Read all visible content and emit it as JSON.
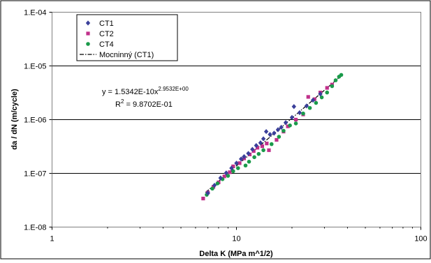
{
  "chart_data": {
    "type": "scatter",
    "xscale": "log",
    "yscale": "log",
    "xlim": [
      1,
      100
    ],
    "ylim": [
      1e-08,
      0.0001
    ],
    "xticks": [
      1,
      10,
      100
    ],
    "xtick_labels": [
      "1",
      "10",
      "100"
    ],
    "yticks": [
      1e-08,
      1e-07,
      1e-06,
      1e-05,
      0.0001
    ],
    "ytick_labels": [
      "1.E-08",
      "1.E-07",
      "1.E-06",
      "1.E-05",
      "1.E-04"
    ],
    "xlabel": "Delta K (MPa m^1/2)",
    "ylabel": "da / dN  (m/cycle)",
    "grid": "horizontal major",
    "legend_position": "top-left",
    "series": [
      {
        "name": "CT1",
        "marker": "diamond",
        "color": "#3a3f9a",
        "points": [
          [
            7.0,
            4.3e-08
          ],
          [
            7.6,
            6e-08
          ],
          [
            8.2,
            8.2e-08
          ],
          [
            8.8,
            1.02e-07
          ],
          [
            9.4,
            1.25e-07
          ],
          [
            10.0,
            1.55e-07
          ],
          [
            10.6,
            1.85e-07
          ],
          [
            11.0,
            2.05e-07
          ],
          [
            11.6,
            2.35e-07
          ],
          [
            12.2,
            2.8e-07
          ],
          [
            12.8,
            3.3e-07
          ],
          [
            13.5,
            3.7e-07
          ],
          [
            14.0,
            4.4e-07
          ],
          [
            14.5,
            6e-07
          ],
          [
            15.2,
            5.3e-07
          ],
          [
            16.0,
            5.6e-07
          ],
          [
            16.8,
            6.5e-07
          ],
          [
            17.5,
            7.2e-07
          ],
          [
            18.5,
            8.8e-07
          ],
          [
            20.0,
            1.1e-06
          ],
          [
            20.5,
            1.75e-06
          ],
          [
            22.0,
            1.35e-06
          ],
          [
            24.0,
            1.8e-06
          ],
          [
            26.0,
            2.3e-06
          ],
          [
            28.5,
            3e-06
          ]
        ]
      },
      {
        "name": "CT2",
        "marker": "square",
        "color": "#c0308a",
        "points": [
          [
            6.6,
            3.4e-08
          ],
          [
            7.0,
            4.4e-08
          ],
          [
            7.5,
            5.6e-08
          ],
          [
            8.0,
            6.8e-08
          ],
          [
            8.6,
            8.8e-08
          ],
          [
            9.2,
            1.05e-07
          ],
          [
            9.6,
            1.35e-07
          ],
          [
            10.4,
            1.55e-07
          ],
          [
            11.0,
            1.9e-07
          ],
          [
            11.8,
            2.25e-07
          ],
          [
            12.4,
            2.6e-07
          ],
          [
            13.0,
            3e-07
          ],
          [
            13.8,
            3.2e-07
          ],
          [
            14.6,
            3.6e-07
          ],
          [
            15.0,
            2.7e-07
          ],
          [
            16.5,
            4.2e-07
          ],
          [
            18.0,
            6e-07
          ],
          [
            19.0,
            7.5e-07
          ],
          [
            21.0,
            1e-06
          ],
          [
            23.0,
            1.25e-06
          ],
          [
            24.5,
            2.65e-06
          ],
          [
            26.5,
            2.4e-06
          ],
          [
            28.5,
            3.2e-06
          ],
          [
            31.0,
            3.9e-06
          ],
          [
            33.0,
            4.5e-06
          ]
        ]
      },
      {
        "name": "CT4",
        "marker": "circle",
        "color": "#1a9a4a",
        "points": [
          [
            6.9,
            4e-08
          ],
          [
            7.4,
            5.2e-08
          ],
          [
            7.9,
            6.5e-08
          ],
          [
            8.4,
            7.8e-08
          ],
          [
            9.0,
            9e-08
          ],
          [
            9.6,
            1.1e-07
          ],
          [
            10.2,
            1.25e-07
          ],
          [
            11.2,
            1.4e-07
          ],
          [
            11.7,
            1.65e-07
          ],
          [
            12.5,
            2e-07
          ],
          [
            13.2,
            2.3e-07
          ],
          [
            14.0,
            2.7e-07
          ],
          [
            15.5,
            3.5e-07
          ],
          [
            17.0,
            4.8e-07
          ],
          [
            18.0,
            6.2e-07
          ],
          [
            19.5,
            7.8e-07
          ],
          [
            21.0,
            8.5e-07
          ],
          [
            23.0,
            1.3e-06
          ],
          [
            25.0,
            1.65e-06
          ],
          [
            27.0,
            2.05e-06
          ],
          [
            29.0,
            2.6e-06
          ],
          [
            31.0,
            3.2e-06
          ],
          [
            33.0,
            4.2e-06
          ],
          [
            34.5,
            5.4e-06
          ],
          [
            36.0,
            6.3e-06
          ],
          [
            37.0,
            6.8e-06
          ]
        ]
      }
    ],
    "trendline": {
      "name": "Mocninný (CT1)",
      "type": "power",
      "coefficient": 1.5342e-10,
      "exponent": 2.9532,
      "x_range": [
        6.8,
        37.0
      ],
      "style": "dash-dot",
      "color": "#000000"
    },
    "annotations": {
      "equation_prefix": "y = 1.5342E-10x",
      "equation_exponent": "2.9532E+00",
      "r2_prefix": "R",
      "r2_sup": "2",
      "r2_value": " = 9.8702E-01"
    }
  }
}
